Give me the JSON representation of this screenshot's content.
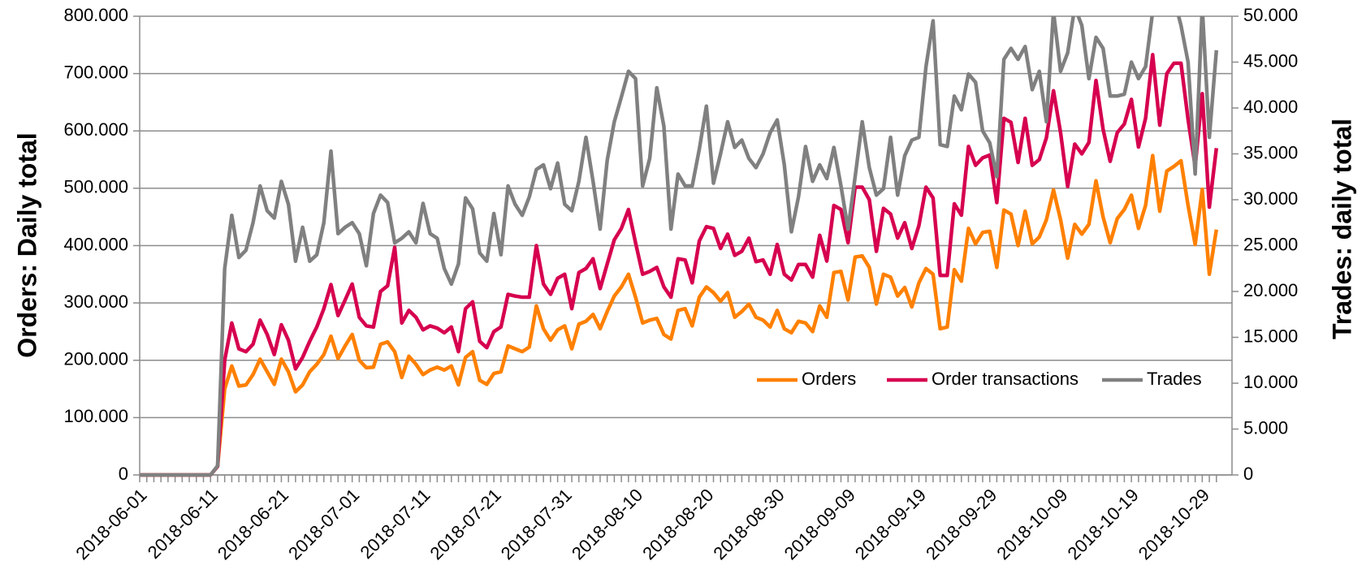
{
  "chart_data": {
    "type": "line",
    "categories": [
      "2018-06-01",
      null,
      null,
      null,
      null,
      null,
      null,
      null,
      null,
      null,
      "2018-06-11",
      null,
      null,
      null,
      null,
      null,
      null,
      null,
      null,
      null,
      "2018-06-21",
      null,
      null,
      null,
      null,
      null,
      null,
      null,
      null,
      null,
      "2018-07-01",
      null,
      null,
      null,
      null,
      null,
      null,
      null,
      null,
      null,
      "2018-07-11",
      null,
      null,
      null,
      null,
      null,
      null,
      null,
      null,
      null,
      "2018-07-21",
      null,
      null,
      null,
      null,
      null,
      null,
      null,
      null,
      null,
      "2018-07-31",
      null,
      null,
      null,
      null,
      null,
      null,
      null,
      null,
      null,
      "2018-08-10",
      null,
      null,
      null,
      null,
      null,
      null,
      null,
      null,
      null,
      "2018-08-20",
      null,
      null,
      null,
      null,
      null,
      null,
      null,
      null,
      null,
      "2018-08-30",
      null,
      null,
      null,
      null,
      null,
      null,
      null,
      null,
      null,
      "2018-09-09",
      null,
      null,
      null,
      null,
      null,
      null,
      null,
      null,
      null,
      "2018-09-19",
      null,
      null,
      null,
      null,
      null,
      null,
      null,
      null,
      null,
      "2018-09-29",
      null,
      null,
      null,
      null,
      null,
      null,
      null,
      null,
      null,
      "2018-10-09",
      null,
      null,
      null,
      null,
      null,
      null,
      null,
      null,
      null,
      "2018-10-19",
      null,
      null,
      null,
      null,
      null,
      null,
      null,
      null,
      null,
      "2018-10-29",
      null,
      null
    ],
    "series": [
      {
        "name": "Orders",
        "color": "#ff8000",
        "values": [
          0,
          0,
          0,
          0,
          0,
          0,
          0,
          0,
          0,
          0,
          0,
          15000,
          150000,
          190000,
          155000,
          157000,
          175000,
          202000,
          180000,
          158000,
          202000,
          180000,
          145000,
          157000,
          180000,
          193000,
          210000,
          242000,
          203000,
          225000,
          245000,
          200000,
          187000,
          188000,
          228000,
          232000,
          215000,
          170000,
          207000,
          193000,
          175000,
          183000,
          188000,
          183000,
          190000,
          157000,
          205000,
          215000,
          165000,
          158000,
          177000,
          180000,
          225000,
          220000,
          215000,
          223000,
          295000,
          255000,
          235000,
          253000,
          260000,
          220000,
          263000,
          268000,
          280000,
          255000,
          285000,
          312000,
          328000,
          350000,
          310000,
          265000,
          270000,
          273000,
          245000,
          237000,
          287000,
          290000,
          260000,
          310000,
          328000,
          318000,
          303000,
          318000,
          275000,
          285000,
          298000,
          275000,
          270000,
          258000,
          287000,
          255000,
          248000,
          268000,
          265000,
          250000,
          295000,
          275000,
          353000,
          355000,
          305000,
          380000,
          382000,
          362000,
          298000,
          350000,
          345000,
          312000,
          327000,
          293000,
          335000,
          360000,
          350000,
          255000,
          258000,
          358000,
          338000,
          430000,
          403000,
          423000,
          425000,
          362000,
          462000,
          455000,
          400000,
          460000,
          403000,
          415000,
          445000,
          497000,
          445000,
          378000,
          437000,
          420000,
          437000,
          513000,
          450000,
          405000,
          447000,
          463000,
          488000,
          430000,
          470000,
          557000,
          460000,
          530000,
          538000,
          548000,
          470000,
          402000,
          498000,
          350000,
          428000
        ]
      },
      {
        "name": "Order transactions",
        "color": "#d6004f",
        "values": [
          0,
          0,
          0,
          0,
          0,
          0,
          0,
          0,
          0,
          0,
          0,
          15000,
          200000,
          265000,
          220000,
          215000,
          228000,
          270000,
          245000,
          210000,
          262000,
          235000,
          185000,
          205000,
          233000,
          258000,
          290000,
          332000,
          278000,
          305000,
          333000,
          275000,
          260000,
          258000,
          320000,
          330000,
          397000,
          265000,
          287000,
          275000,
          253000,
          260000,
          256000,
          248000,
          258000,
          215000,
          290000,
          302000,
          233000,
          222000,
          250000,
          258000,
          315000,
          312000,
          310000,
          310000,
          400000,
          333000,
          315000,
          343000,
          350000,
          290000,
          353000,
          360000,
          377000,
          325000,
          368000,
          410000,
          430000,
          463000,
          405000,
          350000,
          355000,
          362000,
          328000,
          310000,
          377000,
          375000,
          335000,
          408000,
          433000,
          430000,
          395000,
          420000,
          383000,
          390000,
          413000,
          372000,
          375000,
          350000,
          402000,
          350000,
          340000,
          367000,
          367000,
          345000,
          418000,
          373000,
          470000,
          463000,
          405000,
          502000,
          502000,
          480000,
          390000,
          465000,
          455000,
          413000,
          440000,
          395000,
          435000,
          502000,
          483000,
          348000,
          348000,
          473000,
          453000,
          573000,
          540000,
          553000,
          558000,
          475000,
          622000,
          615000,
          545000,
          622000,
          540000,
          550000,
          588000,
          670000,
          597000,
          503000,
          577000,
          560000,
          580000,
          688000,
          603000,
          547000,
          597000,
          612000,
          655000,
          572000,
          622000,
          733000,
          610000,
          700000,
          718000,
          718000,
          620000,
          538000,
          665000,
          467000,
          570000
        ]
      },
      {
        "name": "Trades",
        "color": "#808080",
        "axis": "y2",
        "values": [
          0,
          0,
          0,
          0,
          0,
          0,
          0,
          0,
          0,
          0,
          0,
          1000,
          22500,
          28300,
          23700,
          24500,
          27500,
          31500,
          28800,
          28000,
          32000,
          29500,
          23300,
          27000,
          23300,
          24000,
          27500,
          35300,
          26300,
          27000,
          27500,
          26300,
          22800,
          28500,
          30500,
          29700,
          25300,
          25800,
          26500,
          25300,
          29600,
          26300,
          25800,
          22500,
          20800,
          23000,
          30200,
          29000,
          24200,
          23300,
          28500,
          24000,
          31500,
          29500,
          28300,
          30300,
          33300,
          33800,
          31200,
          34000,
          29500,
          28800,
          32000,
          36800,
          32000,
          26800,
          34300,
          38500,
          41200,
          44000,
          43200,
          31500,
          34500,
          42200,
          38000,
          26800,
          32800,
          31500,
          31500,
          35500,
          40200,
          31800,
          35000,
          38500,
          35700,
          36500,
          34500,
          33500,
          35000,
          37300,
          38700,
          33800,
          26500,
          30300,
          35800,
          32000,
          33800,
          32300,
          35700,
          31500,
          26800,
          32500,
          38500,
          33500,
          30500,
          31200,
          36800,
          30500,
          34800,
          36500,
          36800,
          44500,
          49500,
          36000,
          35800,
          41300,
          39800,
          43700,
          42800,
          37500,
          36200,
          32500,
          45300,
          46500,
          45300,
          46700,
          42000,
          44000,
          38500,
          50500,
          44000,
          46000,
          51000,
          49000,
          43200,
          47700,
          46500,
          41300,
          41300,
          41500,
          45000,
          43200,
          44500,
          50500,
          51000,
          52000,
          52000,
          49000,
          45000,
          32800,
          51000,
          36800,
          46300
        ]
      }
    ],
    "ylabel": "Orders: Daily total",
    "y2label": "Trades: daily total",
    "ylim": [
      0,
      800000
    ],
    "yticks": [
      0,
      {
        "value": 100000,
        "label": "100.000"
      },
      {
        "value": 200000,
        "label": "200.000"
      },
      {
        "value": 300000,
        "label": "300.000"
      },
      {
        "value": 400000,
        "label": "400.000"
      },
      {
        "value": 500000,
        "label": "500.000"
      },
      {
        "value": 600000,
        "label": "600.000"
      },
      {
        "value": 700000,
        "label": "700.000"
      },
      {
        "value": 800000,
        "label": "800.000"
      }
    ],
    "y2lim": [
      0,
      50000
    ],
    "y2ticks": [
      0,
      {
        "value": 5000,
        "label": "5.000"
      },
      {
        "value": 10000,
        "label": "10.000"
      },
      {
        "value": 15000,
        "label": "15.000"
      },
      {
        "value": 20000,
        "label": "20.000"
      },
      {
        "value": 25000,
        "label": "25.000"
      },
      {
        "value": 30000,
        "label": "30.000"
      },
      {
        "value": 35000,
        "label": "35.000"
      },
      {
        "value": 40000,
        "label": "40.000"
      },
      {
        "value": 45000,
        "label": "45.000"
      },
      {
        "value": 50000,
        "label": "50.000"
      }
    ],
    "grid": true,
    "legend": "right"
  }
}
